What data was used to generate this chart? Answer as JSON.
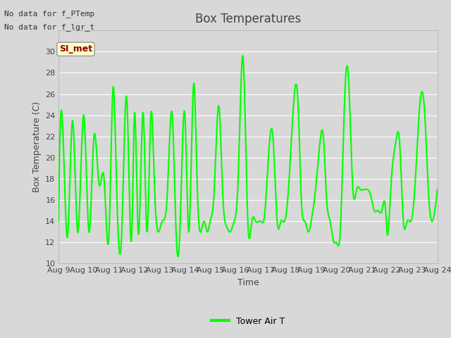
{
  "title": "Box Temperatures",
  "xlabel": "Time",
  "ylabel": "Box Temperature (C)",
  "ylim": [
    10,
    32
  ],
  "yticks": [
    10,
    12,
    14,
    16,
    18,
    20,
    22,
    24,
    26,
    28,
    30
  ],
  "line_color": "#00FF00",
  "line_width": 1.5,
  "bg_color": "#D8D8D8",
  "no_data_text1": "No data for f_PTemp",
  "no_data_text2": "No data for f_lgr_t",
  "si_met_label": "SI_met",
  "legend_label": "Tower Air T",
  "x_tick_labels": [
    "Aug 9",
    "Aug 10",
    "Aug 11",
    "Aug 12",
    "Aug 13",
    "Aug 14",
    "Aug 15",
    "Aug 16",
    "Aug 17",
    "Aug 18",
    "Aug 19",
    "Aug 20",
    "Aug 21",
    "Aug 22",
    "Aug 23",
    "Aug 24"
  ],
  "x_tick_positions": [
    0,
    1,
    2,
    3,
    4,
    5,
    6,
    7,
    8,
    9,
    10,
    11,
    12,
    13,
    14,
    15
  ],
  "xlim": [
    0,
    15
  ],
  "key_points_x": [
    0,
    0.15,
    0.35,
    0.55,
    0.75,
    1.0,
    1.2,
    1.4,
    1.6,
    1.8,
    2.0,
    2.15,
    2.3,
    2.5,
    2.7,
    2.9,
    3.0,
    3.15,
    3.35,
    3.5,
    3.65,
    3.8,
    3.95,
    4.1,
    4.3,
    4.5,
    4.65,
    4.8,
    5.0,
    5.15,
    5.35,
    5.5,
    5.6,
    5.75,
    5.9,
    6.0,
    6.15,
    6.35,
    6.5,
    6.65,
    6.8,
    6.95,
    7.1,
    7.3,
    7.5,
    7.65,
    7.8,
    8.0,
    8.15,
    8.35,
    8.5,
    8.65,
    8.8,
    8.95,
    9.1,
    9.3,
    9.5,
    9.6,
    9.75,
    9.9,
    10.0,
    10.15,
    10.35,
    10.5,
    10.6,
    10.75,
    10.9,
    11.0,
    11.15,
    11.35,
    11.5,
    11.65,
    11.8,
    11.95,
    12.1,
    12.2,
    12.35,
    12.5,
    12.65,
    12.8,
    12.95,
    13.0,
    13.15,
    13.35,
    13.5,
    13.65,
    13.8,
    13.95,
    14.1,
    14.3,
    14.5,
    14.65,
    14.8,
    15.0
  ],
  "key_points_y": [
    14.0,
    23.5,
    12.5,
    23.5,
    13.0,
    24.0,
    13.0,
    22.0,
    17.5,
    18.0,
    13.0,
    26.5,
    17.0,
    13.0,
    25.5,
    13.0,
    24.0,
    13.0,
    24.2,
    13.0,
    24.0,
    17.0,
    13.0,
    14.0,
    16.5,
    24.0,
    13.0,
    13.0,
    24.0,
    13.0,
    27.0,
    16.5,
    13.0,
    14.0,
    13.0,
    14.0,
    16.5,
    24.8,
    16.5,
    13.5,
    13.0,
    14.0,
    17.5,
    29.5,
    13.5,
    14.0,
    14.0,
    14.0,
    14.5,
    21.5,
    21.5,
    14.0,
    14.0,
    14.0,
    17.0,
    25.0,
    24.0,
    16.5,
    14.0,
    13.0,
    14.0,
    16.5,
    21.5,
    21.5,
    16.5,
    14.0,
    12.0,
    12.0,
    13.0,
    27.0,
    26.5,
    17.0,
    17.0,
    17.0,
    17.0,
    17.0,
    16.5,
    15.0,
    15.0,
    15.0,
    15.0,
    13.0,
    17.0,
    21.5,
    21.5,
    14.0,
    14.0,
    14.0,
    17.0,
    25.0,
    24.0,
    16.5,
    14.0,
    17.0
  ]
}
